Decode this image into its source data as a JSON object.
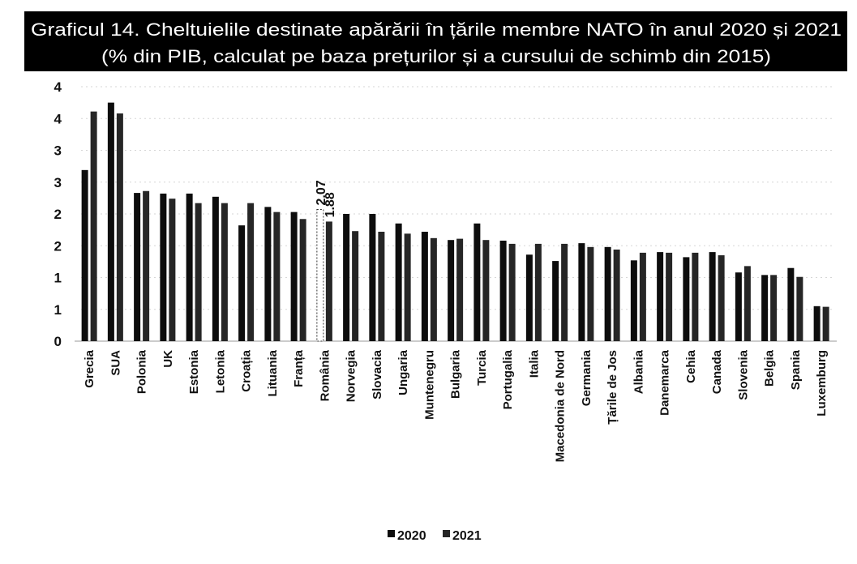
{
  "chart_data": {
    "type": "bar",
    "title": "Graficul 14. Cheltuielile destinate apărării în țările membre NATO în anul 2020 și 2021",
    "subtitle": "(% din PIB, calculat pe baza prețurilor și a cursului de schimb din 2015)",
    "categories": [
      "Grecia",
      "SUA",
      "Polonia",
      "UK",
      "Estonia",
      "Letonia",
      "Croația",
      "Lituania",
      "Franța",
      "România",
      "Norvegia",
      "Slovacia",
      "Ungaria",
      "Muntenegru",
      "Bulgaria",
      "Turcia",
      "Portugalia",
      "Italia",
      "Macedonia de Nord",
      "Germania",
      "Țările de Jos",
      "Albania",
      "Danemarca",
      "Cehia",
      "Canada",
      "Slovenia",
      "Belgia",
      "Spania",
      "Luxemburg"
    ],
    "series": [
      {
        "name": "2020",
        "color": "#0d0d0d",
        "values": [
          2.69,
          3.75,
          2.33,
          2.32,
          2.32,
          2.27,
          1.82,
          2.11,
          2.03,
          2.07,
          2.0,
          2.0,
          1.85,
          1.72,
          1.59,
          1.85,
          1.58,
          1.36,
          1.26,
          1.54,
          1.48,
          1.27,
          1.4,
          1.32,
          1.4,
          1.08,
          1.04,
          1.15,
          0.55
        ]
      },
      {
        "name": "2021",
        "color": "#262626",
        "values": [
          3.61,
          3.58,
          2.36,
          2.24,
          2.17,
          2.17,
          2.17,
          2.03,
          1.92,
          1.88,
          1.73,
          1.72,
          1.69,
          1.62,
          1.61,
          1.59,
          1.53,
          1.53,
          1.53,
          1.48,
          1.44,
          1.39,
          1.39,
          1.39,
          1.35,
          1.18,
          1.04,
          1.01,
          0.54
        ]
      }
    ],
    "ylim": [
      0,
      4
    ],
    "yticks": [
      0,
      0.5,
      1,
      1.5,
      2,
      2.5,
      3,
      3.5,
      4
    ],
    "ytick_labels": [
      "0",
      "1",
      "1",
      "2",
      "2",
      "3",
      "3",
      "4",
      "4"
    ],
    "data_labels": [
      {
        "category": "România",
        "series": "2020",
        "text": "2.07"
      },
      {
        "category": "România",
        "series": "2021",
        "text": "1.88"
      }
    ],
    "highlight": {
      "category": "România",
      "series": "2020"
    },
    "legend": "bottom",
    "grid": true
  }
}
